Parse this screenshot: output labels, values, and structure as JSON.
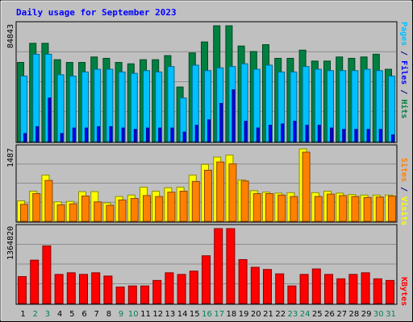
{
  "chart_data": [
    {
      "type": "bar",
      "title": "Daily usage for September 2023",
      "categories": [
        "1",
        "2",
        "3",
        "4",
        "5",
        "6",
        "7",
        "8",
        "9",
        "10",
        "11",
        "12",
        "13",
        "14",
        "15",
        "16",
        "17",
        "18",
        "19",
        "20",
        "21",
        "22",
        "23",
        "24",
        "25",
        "26",
        "27",
        "28",
        "29",
        "30",
        "31"
      ],
      "weekend_days": [
        "2",
        "3",
        "9",
        "10",
        "16",
        "17",
        "23",
        "24",
        "30",
        "31"
      ],
      "ymax_label": "84843",
      "ylim": [
        0,
        84843
      ],
      "side_labels": [
        {
          "text": "Pages",
          "color": "#00c0ff"
        },
        {
          "text": " / ",
          "color": "#000080"
        },
        {
          "text": "Files",
          "color": "#0000ff"
        },
        {
          "text": " / ",
          "color": "#000080"
        },
        {
          "text": "Hits",
          "color": "#008040"
        }
      ],
      "series": [
        {
          "name": "Hits",
          "color": "#008040",
          "values": [
            58000,
            72000,
            72000,
            60000,
            58000,
            58000,
            62000,
            61000,
            58000,
            57000,
            60000,
            60000,
            63000,
            40000,
            65000,
            73000,
            85000,
            88000,
            70000,
            66000,
            71000,
            61000,
            61000,
            67000,
            59000,
            59000,
            62000,
            61000,
            62000,
            64000,
            53000
          ]
        },
        {
          "name": "Files",
          "color": "#00c0ff",
          "values": [
            48000,
            64000,
            64000,
            49000,
            48000,
            51000,
            53000,
            53000,
            51000,
            50000,
            52000,
            51000,
            55000,
            32000,
            56000,
            52000,
            54000,
            55000,
            57000,
            53000,
            56000,
            51000,
            51000,
            55000,
            53000,
            52000,
            52000,
            52000,
            53000,
            52000,
            48000
          ]
        },
        {
          "name": "Pages",
          "color": "#0000ff",
          "values": [
            6000,
            11000,
            32000,
            6000,
            10000,
            10000,
            11000,
            11000,
            10000,
            9000,
            10000,
            10000,
            10000,
            7000,
            12000,
            16000,
            28000,
            38000,
            15000,
            10000,
            12000,
            13000,
            15000,
            12000,
            12000,
            10000,
            9000,
            9000,
            9000,
            9000,
            5000
          ]
        }
      ]
    },
    {
      "type": "bar",
      "ymax_label": "1487",
      "ylim": [
        0,
        1487
      ],
      "side_labels": [
        {
          "text": "Sites",
          "color": "#ff8000"
        },
        {
          "text": " / ",
          "color": "#000080"
        },
        {
          "text": "Visits",
          "color": "#ffff00"
        }
      ],
      "series": [
        {
          "name": "Visits",
          "color": "#ffff00",
          "values": [
            420,
            620,
            950,
            400,
            410,
            610,
            610,
            380,
            510,
            540,
            700,
            620,
            690,
            700,
            950,
            1170,
            1320,
            1360,
            850,
            630,
            600,
            580,
            590,
            1490,
            590,
            620,
            580,
            550,
            540,
            540,
            540
          ]
        },
        {
          "name": "Sites",
          "color": "#ff8000",
          "values": [
            350,
            570,
            840,
            340,
            360,
            520,
            400,
            330,
            440,
            470,
            530,
            510,
            600,
            620,
            820,
            1050,
            1220,
            1180,
            830,
            570,
            570,
            540,
            510,
            1420,
            510,
            560,
            530,
            510,
            490,
            500,
            520
          ]
        }
      ]
    },
    {
      "type": "bar",
      "ymax_label": "1364820",
      "ylim": [
        0,
        1364820
      ],
      "side_labels": [
        {
          "text": "KBytes",
          "color": "#ff0000"
        }
      ],
      "series": [
        {
          "name": "KBytes",
          "color": "#ff0000",
          "values": [
            490000,
            790000,
            1050000,
            530000,
            560000,
            530000,
            560000,
            500000,
            300000,
            320000,
            320000,
            420000,
            560000,
            530000,
            590000,
            870000,
            1390000,
            1390000,
            800000,
            660000,
            620000,
            540000,
            320000,
            530000,
            630000,
            530000,
            450000,
            530000,
            560000,
            450000,
            420000
          ]
        }
      ]
    }
  ],
  "colors": {
    "frame_bg": "#c0c0c0",
    "plot_bg": "#c0c0c0",
    "title": "#0000ff",
    "weekday_label": "#000000",
    "weekend_label": "#00805c",
    "grid": "#8c8c8c"
  }
}
